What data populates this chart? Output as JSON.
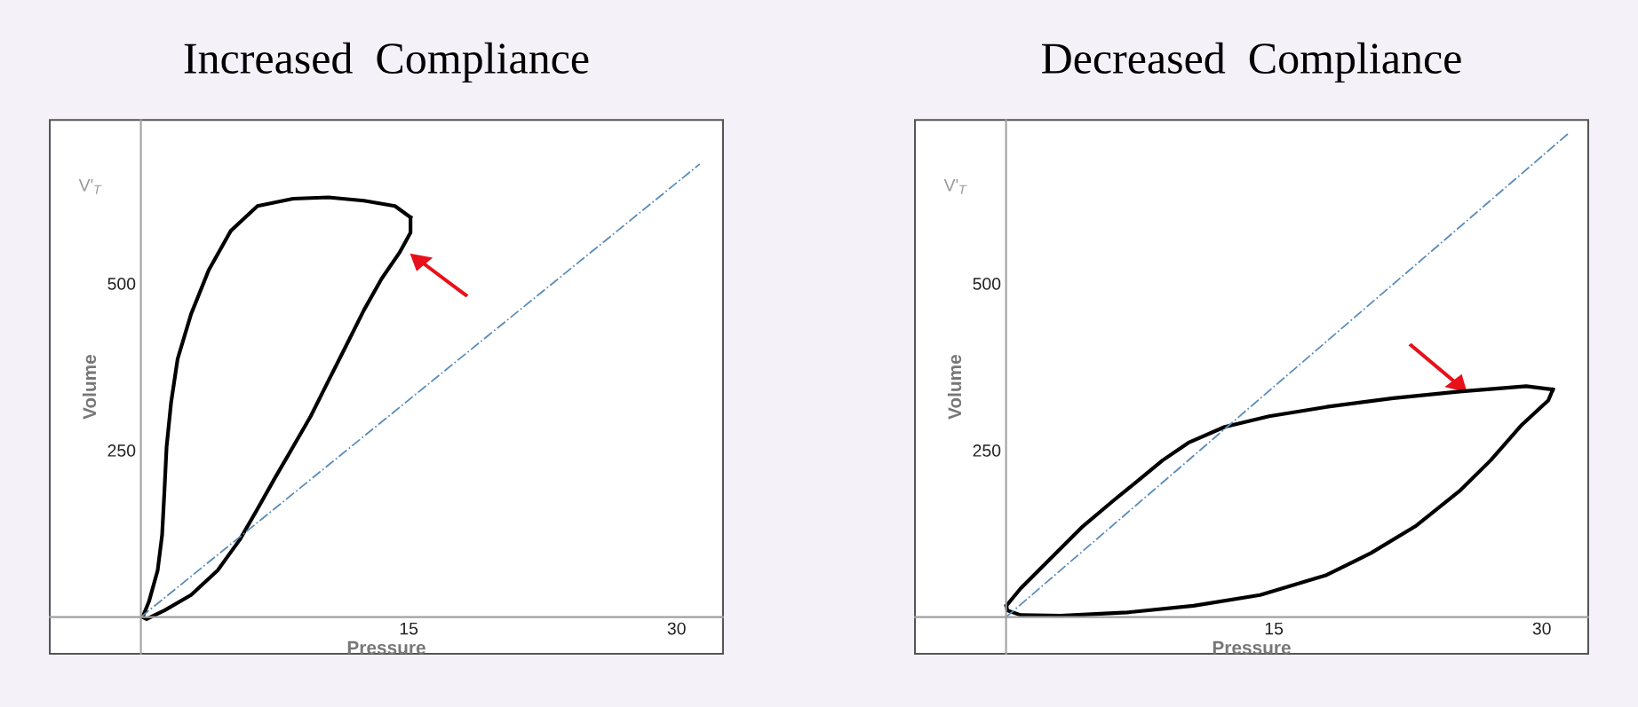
{
  "chart_data": [
    {
      "type": "line",
      "title": "Increased  Compliance",
      "xlabel": "Pressure",
      "ylabel": "Volume",
      "annotations": [
        "V'$_{T}$"
      ],
      "xlim": [
        -5.1,
        32.6
      ],
      "ylim": [
        -55,
        745
      ],
      "xticks": [
        15,
        30
      ],
      "yticks": [
        250,
        500
      ],
      "grid": false,
      "legend": false,
      "marker": "none",
      "series": [
        {
          "color": "#000000",
          "line_style": "solid",
          "x": [
            0.1,
            0.45,
            0.94,
            1.19,
            1.32,
            1.44,
            1.69,
            2.06,
            2.81,
            3.8,
            5.04,
            6.53,
            8.52,
            10.5,
            12.49,
            14.23,
            15.1
          ],
          "values": [
            0,
            23,
            70,
            123,
            189,
            255,
            321,
            387,
            454,
            520,
            579,
            616,
            627,
            629,
            624,
            616,
            599
          ]
        },
        {
          "color": "#000000",
          "line_style": "solid",
          "x": [
            15.1,
            15.1,
            14.48,
            13.48,
            12.49,
            11.5,
            10.5,
            9.51,
            8.52,
            7.52,
            6.53,
            5.54,
            4.3,
            2.81,
            1.32,
            0.32,
            0.1
          ],
          "values": [
            599,
            576,
            546,
            507,
            460,
            407,
            354,
            301,
            255,
            209,
            162,
            116,
            70,
            33,
            10,
            -3,
            0
          ]
        },
        {
          "color": "#5b8db8",
          "line_style": "dashdot",
          "x": [
            0,
            31.3
          ],
          "values": [
            0,
            679
          ]
        }
      ]
    },
    {
      "type": "line",
      "title": "Decreased  Compliance",
      "xlabel": "Pressure",
      "ylabel": "Volume",
      "annotations": [
        "V'$_{T}$"
      ],
      "xlim": [
        -5.1,
        32.6
      ],
      "ylim": [
        -55,
        745
      ],
      "xticks": [
        15,
        30
      ],
      "yticks": [
        250,
        500
      ],
      "grid": false,
      "legend": false,
      "marker": "none",
      "series": [
        {
          "color": "#000000",
          "line_style": "solid",
          "x": [
            0.02,
            0.82,
            2.31,
            4.3,
            6.03,
            7.28,
            8.77,
            10.26,
            12.24,
            14.73,
            17.95,
            21.68,
            25.4,
            29.13,
            30.62
          ],
          "values": [
            17,
            43,
            83,
            136,
            175,
            202,
            235,
            262,
            285,
            301,
            315,
            328,
            338,
            346,
            341
          ]
        },
        {
          "color": "#000000",
          "line_style": "solid",
          "x": [
            30.62,
            30.37,
            28.88,
            27.14,
            25.4,
            22.92,
            20.44,
            17.95,
            14.23,
            10.5,
            6.78,
            3.05,
            0.82,
            0.07,
            0.02
          ],
          "values": [
            341,
            325,
            288,
            235,
            189,
            136,
            96,
            63,
            33,
            17,
            7,
            2,
            3,
            10,
            17
          ]
        },
        {
          "color": "#5b8db8",
          "line_style": "dashdot",
          "x": [
            0,
            31.5
          ],
          "values": [
            0,
            725
          ]
        }
      ]
    }
  ]
}
